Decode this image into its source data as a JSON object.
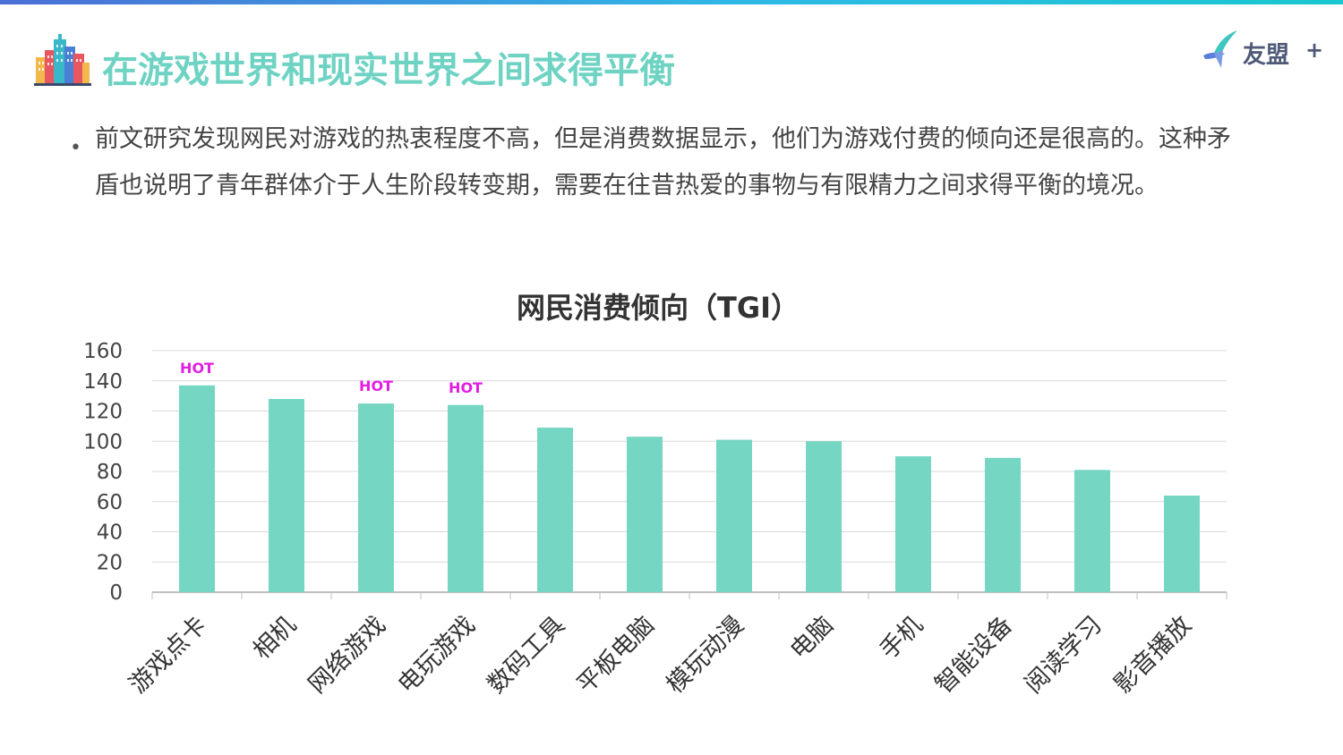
{
  "header": {
    "title": "在游戏世界和现实世界之间求得平衡",
    "brand_name": "友盟",
    "brand_plus": "+",
    "accent_color": "#6fd3c4"
  },
  "content": {
    "bullet": "•",
    "paragraph": "前文研究发现网民对游戏的热衷程度不高，但是消费数据显示，他们为游戏付费的倾向还是很高的。这种矛盾也说明了青年群体介于人生阶段转变期，需要在往昔热爱的事物与有限精力之间求得平衡的境况。"
  },
  "chart_data": {
    "type": "bar",
    "title": "网民消费倾向（TGI）",
    "categories": [
      "游戏点卡",
      "相机",
      "网络游戏",
      "电玩游戏",
      "数码工具",
      "平板电脑",
      "模玩动漫",
      "电脑",
      "手机",
      "智能设备",
      "阅读学习",
      "影音播放"
    ],
    "values": [
      137,
      128,
      125,
      124,
      109,
      103,
      101,
      100,
      90,
      89,
      81,
      64
    ],
    "annotations": [
      "HOT",
      "",
      "HOT",
      "HOT",
      "",
      "",
      "",
      "",
      "",
      "",
      "",
      ""
    ],
    "ylim": [
      0,
      160
    ],
    "yticks": [
      0,
      20,
      40,
      60,
      80,
      100,
      120,
      140,
      160
    ],
    "grid": true,
    "bar_color": "#76d6c4",
    "annotation_color": "#e21ee2"
  }
}
